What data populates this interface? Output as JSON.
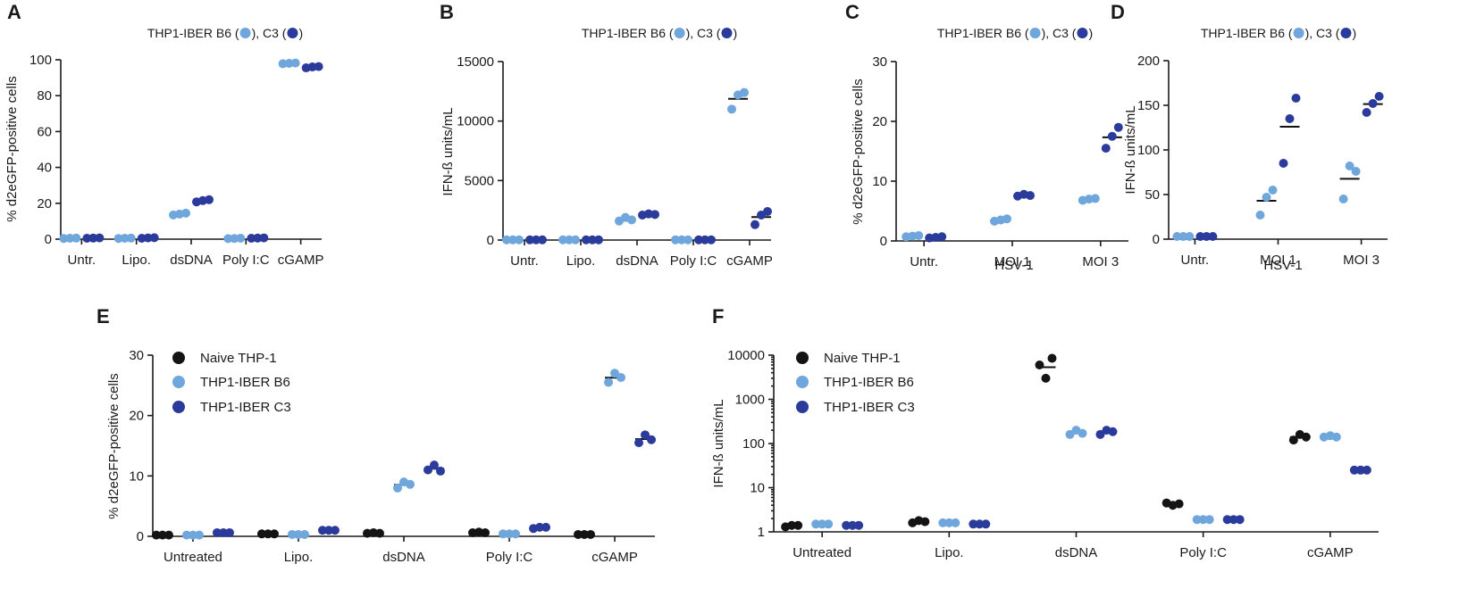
{
  "colors": {
    "naive": "#141414",
    "b6": "#6fa6dc",
    "c3": "#2b3b9c",
    "axis": "#1a1a1a"
  },
  "chart_data": [
    {
      "id": "A",
      "letter": "A",
      "type": "scatter",
      "title_main": "THP1-IBER B6",
      "title_sep": ", C3",
      "ylabel": "% d2eGFP-positive cells",
      "xlabel": "",
      "ylim": [
        0,
        100
      ],
      "yticks": [
        0,
        20,
        40,
        60,
        80,
        100
      ],
      "yticklabels": [
        "0",
        "20",
        "40",
        "60",
        "80",
        "100"
      ],
      "categories": [
        "Untr.",
        "Lipo.",
        "dsDNA",
        "Poly I:C",
        "cGAMP"
      ],
      "series": [
        {
          "name": "THP1-IBER B6",
          "color_key": "b6",
          "points": [
            [
              0.4,
              0.5,
              0.6
            ],
            [
              0.4,
              0.5,
              0.6
            ],
            [
              13.5,
              14,
              14.5
            ],
            [
              0.3,
              0.4,
              0.5
            ],
            [
              97.8,
              98,
              98.2
            ]
          ]
        },
        {
          "name": "THP1-IBER C3",
          "color_key": "c3",
          "points": [
            [
              0.5,
              0.6,
              0.7
            ],
            [
              0.5,
              0.7,
              0.8
            ],
            [
              20.8,
              21.5,
              22
            ],
            [
              0.5,
              0.6,
              0.7
            ],
            [
              95.5,
              96,
              96.2
            ]
          ]
        }
      ]
    },
    {
      "id": "B",
      "letter": "B",
      "type": "scatter",
      "title_main": "THP1-IBER B6",
      "title_sep": ", C3",
      "ylabel": "IFN-ß units/mL",
      "xlabel": "",
      "ylim": [
        0,
        15000
      ],
      "yticks": [
        0,
        5000,
        10000,
        15000
      ],
      "yticklabels": [
        "0",
        "5000",
        "10000",
        "15000"
      ],
      "categories": [
        "Untr.",
        "Lipo.",
        "dsDNA",
        "Poly I:C",
        "cGAMP"
      ],
      "series": [
        {
          "name": "THP1-IBER B6",
          "color_key": "b6",
          "points": [
            [
              20,
              20,
              20
            ],
            [
              20,
              20,
              20
            ],
            [
              1600,
              1900,
              1700
            ],
            [
              20,
              20,
              20
            ],
            [
              11000,
              12200,
              12400
            ]
          ]
        },
        {
          "name": "THP1-IBER C3",
          "color_key": "c3",
          "points": [
            [
              20,
              20,
              20
            ],
            [
              20,
              20,
              20
            ],
            [
              2100,
              2200,
              2150
            ],
            [
              20,
              20,
              20
            ],
            [
              1300,
              2100,
              2400
            ]
          ]
        }
      ]
    },
    {
      "id": "C",
      "letter": "C",
      "type": "scatter",
      "title_main": "THP1-IBER B6",
      "title_sep": ", C3",
      "ylabel": "% d2eGFP-positive cells",
      "xlabel": "HSV-1",
      "ylim": [
        0,
        30
      ],
      "yticks": [
        0,
        10,
        20,
        30
      ],
      "yticklabels": [
        "0",
        "10",
        "20",
        "30"
      ],
      "categories": [
        "Untr.",
        "MOI 1",
        "MOI 3"
      ],
      "series": [
        {
          "name": "THP1-IBER B6",
          "color_key": "b6",
          "points": [
            [
              0.7,
              0.8,
              0.9
            ],
            [
              3.3,
              3.5,
              3.7
            ],
            [
              6.8,
              7.0,
              7.1
            ]
          ]
        },
        {
          "name": "THP1-IBER C3",
          "color_key": "c3",
          "points": [
            [
              0.5,
              0.6,
              0.7
            ],
            [
              7.5,
              7.8,
              7.6
            ],
            [
              15.5,
              17.5,
              19.0
            ]
          ]
        }
      ]
    },
    {
      "id": "D",
      "letter": "D",
      "type": "scatter",
      "title_main": "THP1-IBER B6",
      "title_sep": ", C3",
      "ylabel": "IFN-ß units/mL",
      "xlabel": "HSV-1",
      "ylim": [
        0,
        200
      ],
      "yticks": [
        0,
        50,
        100,
        150,
        200
      ],
      "yticklabels": [
        "0",
        "50",
        "100",
        "150",
        "200"
      ],
      "categories": [
        "Untr.",
        "MOI 1",
        "MOI 3"
      ],
      "series": [
        {
          "name": "THP1-IBER B6",
          "color_key": "b6",
          "points": [
            [
              3,
              3,
              3
            ],
            [
              27,
              47,
              55
            ],
            [
              45,
              82,
              76
            ]
          ]
        },
        {
          "name": "THP1-IBER C3",
          "color_key": "c3",
          "points": [
            [
              3,
              3,
              3
            ],
            [
              85,
              135,
              158
            ],
            [
              142,
              152,
              160
            ]
          ]
        }
      ]
    },
    {
      "id": "E",
      "letter": "E",
      "type": "scatter",
      "ylabel": "% d2eGFP-positive cells",
      "xlabel": "",
      "ylim": [
        0,
        30
      ],
      "yticks": [
        0,
        10,
        20,
        30
      ],
      "yticklabels": [
        "0",
        "10",
        "20",
        "30"
      ],
      "categories": [
        "Untreated",
        "Lipo.",
        "dsDNA",
        "Poly I:C",
        "cGAMP"
      ],
      "legend": [
        "Naive THP-1",
        "THP1-IBER B6",
        "THP1-IBER C3"
      ],
      "series": [
        {
          "name": "Naive THP-1",
          "color_key": "naive",
          "points": [
            [
              0.2,
              0.2,
              0.2
            ],
            [
              0.4,
              0.4,
              0.4
            ],
            [
              0.5,
              0.6,
              0.5
            ],
            [
              0.6,
              0.7,
              0.6
            ],
            [
              0.3,
              0.3,
              0.3
            ]
          ]
        },
        {
          "name": "THP1-IBER B6",
          "color_key": "b6",
          "points": [
            [
              0.2,
              0.2,
              0.2
            ],
            [
              0.3,
              0.3,
              0.3
            ],
            [
              8.0,
              9.0,
              8.6
            ],
            [
              0.4,
              0.4,
              0.4
            ],
            [
              25.5,
              27.0,
              26.3
            ]
          ]
        },
        {
          "name": "THP1-IBER C3",
          "color_key": "c3",
          "points": [
            [
              0.6,
              0.6,
              0.6
            ],
            [
              1.0,
              1.0,
              1.0
            ],
            [
              11.0,
              11.8,
              10.8
            ],
            [
              1.3,
              1.5,
              1.5
            ],
            [
              15.5,
              16.8,
              16.0
            ]
          ]
        }
      ]
    },
    {
      "id": "F",
      "letter": "F",
      "type": "scatter",
      "ylabel": "IFN-ß units/mL",
      "xlabel": "",
      "yscale": "log",
      "ylim": [
        1,
        10000
      ],
      "yticks": [
        1,
        10,
        100,
        1000,
        10000
      ],
      "yticklabels": [
        "1",
        "10",
        "100",
        "1000",
        "10000"
      ],
      "categories": [
        "Untreated",
        "Lipo.",
        "dsDNA",
        "Poly I:C",
        "cGAMP"
      ],
      "legend": [
        "Naive THP-1",
        "THP1-IBER B6",
        "THP1-IBER C3"
      ],
      "series": [
        {
          "name": "Naive THP-1",
          "color_key": "naive",
          "points": [
            [
              1.3,
              1.4,
              1.4
            ],
            [
              1.6,
              1.8,
              1.7
            ],
            [
              6000,
              3000,
              8500
            ],
            [
              4.5,
              4.0,
              4.3
            ],
            [
              120,
              160,
              140
            ]
          ]
        },
        {
          "name": "THP1-IBER B6",
          "color_key": "b6",
          "points": [
            [
              1.5,
              1.5,
              1.5
            ],
            [
              1.6,
              1.6,
              1.6
            ],
            [
              160,
              200,
              170
            ],
            [
              1.9,
              1.9,
              1.9
            ],
            [
              140,
              150,
              140
            ]
          ]
        },
        {
          "name": "THP1-IBER C3",
          "color_key": "c3",
          "points": [
            [
              1.4,
              1.4,
              1.4
            ],
            [
              1.5,
              1.5,
              1.5
            ],
            [
              160,
              200,
              185
            ],
            [
              1.9,
              1.9,
              1.9
            ],
            [
              25,
              25,
              25
            ]
          ]
        }
      ]
    }
  ]
}
